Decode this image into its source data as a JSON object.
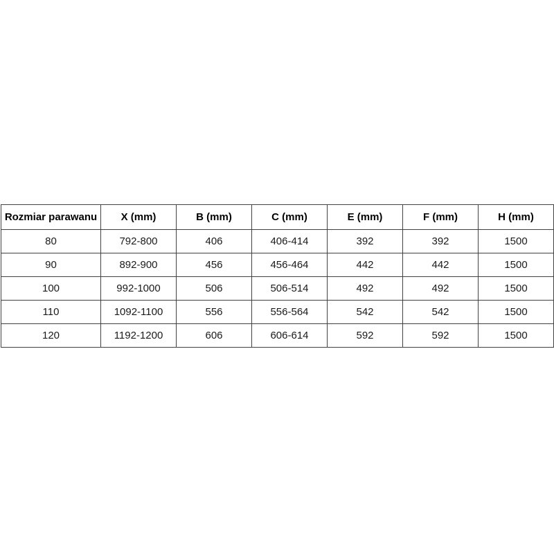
{
  "table": {
    "name": "parawan-dimensions-table",
    "headers": [
      "Rozmiar parawanu",
      "X (mm)",
      "B (mm)",
      "C (mm)",
      "E (mm)",
      "F (mm)",
      "H (mm)"
    ],
    "rows": [
      [
        "80",
        "792-800",
        "406",
        "406-414",
        "392",
        "392",
        "1500"
      ],
      [
        "90",
        "892-900",
        "456",
        "456-464",
        "442",
        "442",
        "1500"
      ],
      [
        "100",
        "992-1000",
        "506",
        "506-514",
        "492",
        "492",
        "1500"
      ],
      [
        "110",
        "1092-1100",
        "556",
        "556-564",
        "542",
        "542",
        "1500"
      ],
      [
        "120",
        "1192-1200",
        "606",
        "606-614",
        "592",
        "592",
        "1500"
      ]
    ],
    "border_color": "#404040",
    "text_color": "#1a1a1a",
    "background_color": "#ffffff"
  }
}
